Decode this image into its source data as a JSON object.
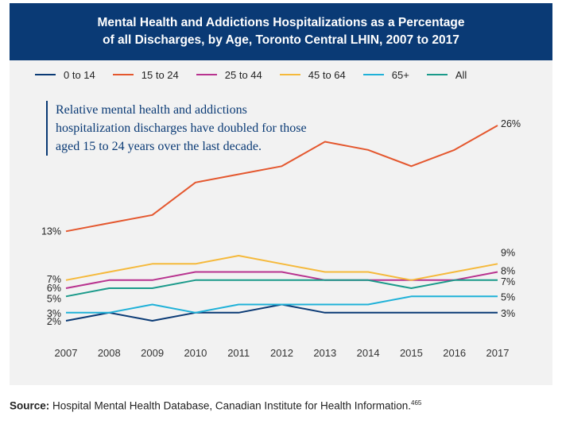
{
  "title_line1": "Mental Health and Addictions Hospitalizations as a Percentage",
  "title_line2": "of all Discharges, by Age, Toronto Central LHIN, 2007 to 2017",
  "annotation": "Relative mental health and addictions hospitalization discharges have doubled for those aged 15 to 24 years over the last decade.",
  "source_label": "Source:",
  "source_text": " Hospital Mental Health Database, Canadian Institute for Health Information.",
  "source_ref": "465",
  "chart_data": {
    "type": "line",
    "title": "Mental Health and Addictions Hospitalizations as a Percentage of all Discharges, by Age, Toronto Central LHIN, 2007 to 2017",
    "x": [
      "2007",
      "2008",
      "2009",
      "2010",
      "2011",
      "2012",
      "2013",
      "2014",
      "2015",
      "2016",
      "2017"
    ],
    "xlabel": "",
    "ylabel": "",
    "ylim": [
      1,
      27
    ],
    "grid": false,
    "legend_position": "top",
    "series": [
      {
        "name": "0 to 14",
        "color": "#0a3a75",
        "values": [
          2,
          3,
          2,
          3,
          3,
          4,
          3,
          3,
          3,
          3,
          3
        ],
        "start_label": "2%",
        "end_label": "3%"
      },
      {
        "name": "15 to 24",
        "color": "#e4572e",
        "values": [
          13,
          14,
          15,
          19,
          20,
          21,
          24,
          23,
          21,
          23,
          26
        ],
        "start_label": "13%",
        "end_label": "26%"
      },
      {
        "name": "25 to 44",
        "color": "#b8338f",
        "values": [
          6,
          7,
          7,
          8,
          8,
          8,
          7,
          7,
          7,
          7,
          8
        ],
        "start_label": "6%",
        "end_label": "8%"
      },
      {
        "name": "45 to 64",
        "color": "#f5b93b",
        "values": [
          7,
          8,
          9,
          9,
          10,
          9,
          8,
          8,
          7,
          8,
          9
        ],
        "start_label": "7%",
        "end_label": "9%"
      },
      {
        "name": "65+",
        "color": "#1fb1d8",
        "values": [
          3,
          3,
          4,
          3,
          4,
          4,
          4,
          4,
          5,
          5,
          5
        ],
        "start_label": "3%",
        "end_label": "5%"
      },
      {
        "name": "All",
        "color": "#1a9a8a",
        "values": [
          5,
          6,
          6,
          7,
          7,
          7,
          7,
          7,
          6,
          7,
          7
        ],
        "start_label": "5%",
        "end_label": "7%"
      }
    ]
  }
}
